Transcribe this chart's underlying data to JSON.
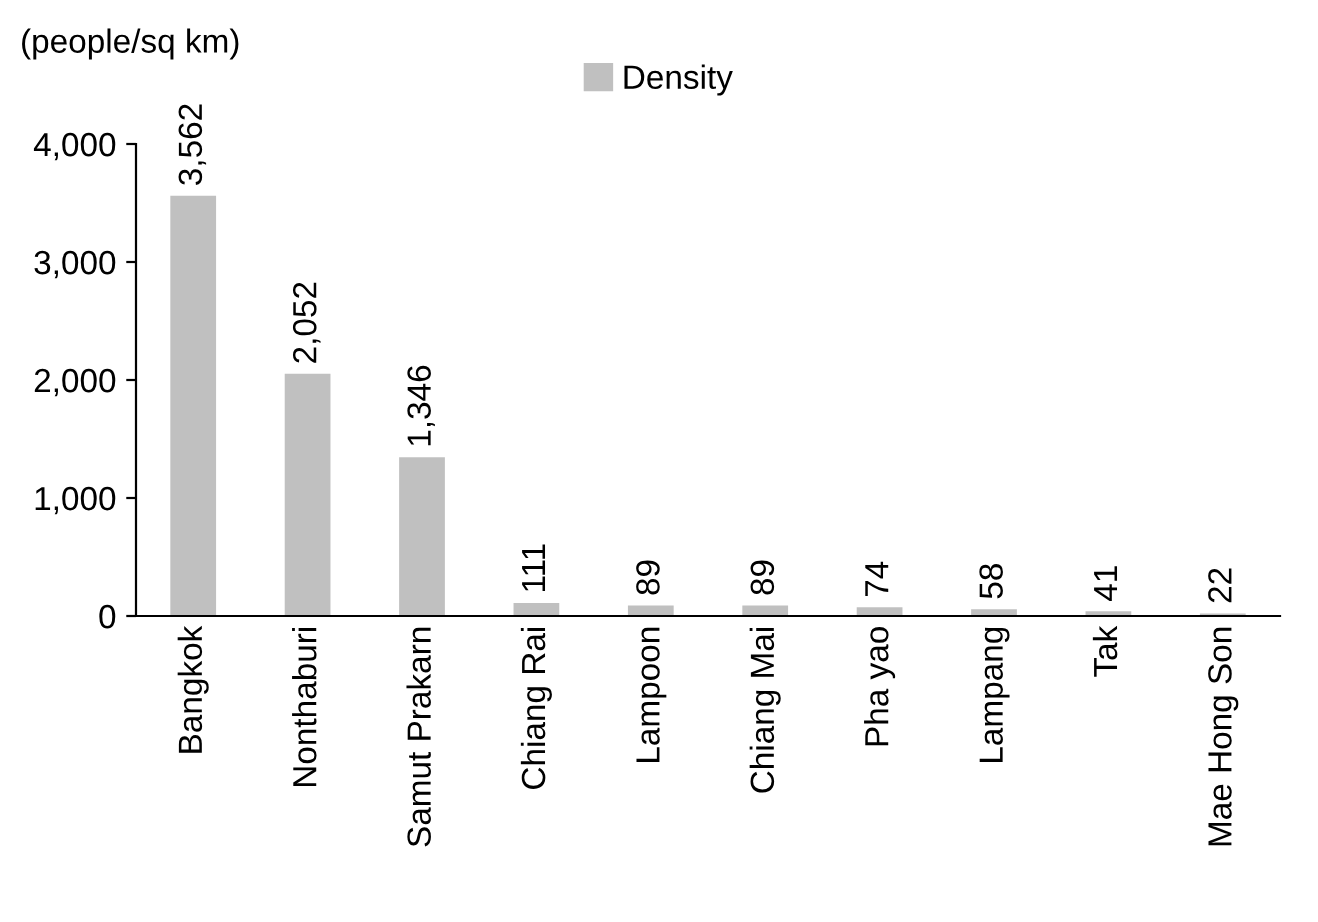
{
  "chart_data": {
    "type": "bar",
    "ylabel": "(people/sq km)",
    "categories": [
      "Bangkok",
      "Nonthaburi",
      "Samut Prakarn",
      "Chiang Rai",
      "Lampoon",
      "Chiang Mai",
      "Pha yao",
      "Lampang",
      "Tak",
      "Mae Hong Son"
    ],
    "series": [
      {
        "name": "Density",
        "color": "#c0c0c0",
        "values": [
          3562,
          2052,
          1346,
          111,
          89,
          89,
          74,
          58,
          41,
          22
        ],
        "value_labels": [
          "3,562",
          "2,052",
          "1,346",
          "111",
          "89",
          "89",
          "74",
          "58",
          "41",
          "22"
        ]
      }
    ],
    "ylim": [
      0,
      4000
    ],
    "yticks": [
      {
        "value": 0,
        "label": "0"
      },
      {
        "value": 1000,
        "label": "1,000"
      },
      {
        "value": 2000,
        "label": "2,000"
      },
      {
        "value": 3000,
        "label": "3,000"
      },
      {
        "value": 4000,
        "label": "4,000"
      }
    ],
    "grid": false,
    "legend": "top"
  }
}
